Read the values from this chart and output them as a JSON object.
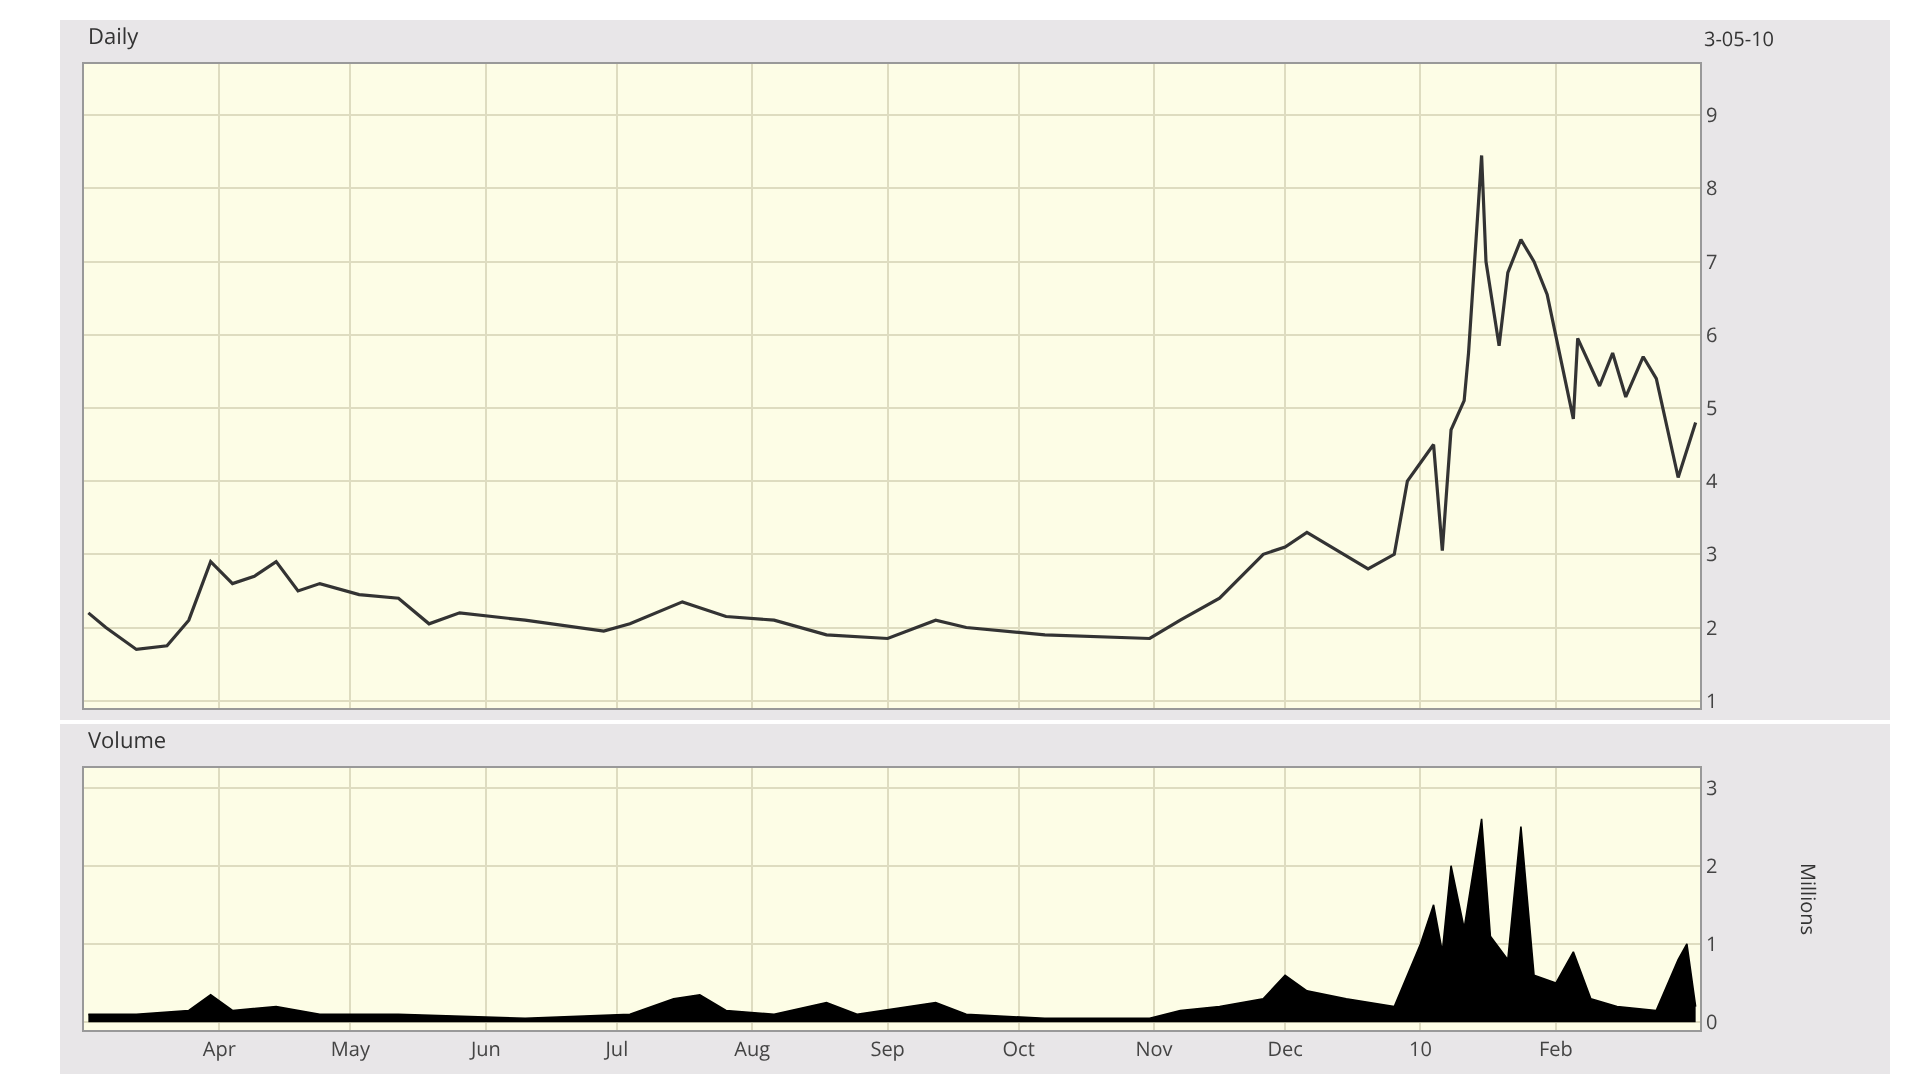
{
  "chart_data": [
    {
      "type": "line",
      "title": "Daily",
      "subtitle": "3-05-10",
      "x": [
        "2009-03-02",
        "2009-03-06",
        "2009-03-13",
        "2009-03-20",
        "2009-03-25",
        "2009-03-30",
        "2009-04-04",
        "2009-04-09",
        "2009-04-14",
        "2009-04-19",
        "2009-04-24",
        "2009-05-03",
        "2009-05-12",
        "2009-05-19",
        "2009-05-26",
        "2009-06-10",
        "2009-06-28",
        "2009-07-04",
        "2009-07-16",
        "2009-07-26",
        "2009-08-06",
        "2009-08-18",
        "2009-09-01",
        "2009-09-12",
        "2009-09-19",
        "2009-10-07",
        "2009-10-31",
        "2009-11-07",
        "2009-11-16",
        "2009-11-26",
        "2009-12-01",
        "2009-12-06",
        "2009-12-20",
        "2009-12-26",
        "2009-12-29",
        "2010-01-04",
        "2010-01-06",
        "2010-01-08",
        "2010-01-11",
        "2010-01-12",
        "2010-01-15",
        "2010-01-16",
        "2010-01-19",
        "2010-01-21",
        "2010-01-24",
        "2010-01-27",
        "2010-01-30",
        "2010-02-05",
        "2010-02-06",
        "2010-02-11",
        "2010-02-14",
        "2010-02-17",
        "2010-02-21",
        "2010-02-24",
        "2010-03-01",
        "2010-03-05"
      ],
      "series": [
        {
          "color": "#333333",
          "values": [
            2.2,
            2.0,
            1.7,
            1.75,
            2.1,
            2.9,
            2.6,
            2.7,
            2.9,
            2.5,
            2.6,
            2.45,
            2.4,
            2.05,
            2.2,
            2.1,
            1.95,
            2.05,
            2.35,
            2.15,
            2.1,
            1.9,
            1.85,
            2.1,
            2.0,
            1.9,
            1.85,
            2.1,
            2.4,
            3.0,
            3.1,
            3.3,
            2.8,
            3.0,
            4.0,
            4.5,
            3.05,
            4.7,
            5.1,
            5.75,
            8.45,
            7.0,
            5.85,
            6.85,
            7.3,
            7.0,
            6.55,
            4.85,
            5.95,
            5.3,
            5.75,
            5.15,
            5.7,
            5.4,
            4.05,
            4.8
          ]
        }
      ],
      "xlim": [
        "2009-03-01",
        "2010-03-06"
      ],
      "xticks": [
        {
          "value": "2009-04-01",
          "label": null
        },
        {
          "value": "2009-05-01",
          "label": null
        },
        {
          "value": "2009-06-01",
          "label": null
        },
        {
          "value": "2009-07-01",
          "label": null
        },
        {
          "value": "2009-08-01",
          "label": null
        },
        {
          "value": "2009-09-01",
          "label": null
        },
        {
          "value": "2009-10-01",
          "label": null
        },
        {
          "value": "2009-11-01",
          "label": null
        },
        {
          "value": "2009-12-01",
          "label": null
        },
        {
          "value": "2010-01-01",
          "label": null
        },
        {
          "value": "2010-02-01",
          "label": null
        }
      ],
      "ylim": [
        0.9,
        9.7
      ],
      "yticks": [
        1,
        2,
        3,
        4,
        5,
        6,
        7,
        8,
        9
      ],
      "tick_labels": "y",
      "grid": true
    },
    {
      "type": "area",
      "title": "Volume",
      "ylabel": "Millions",
      "x": [
        "2009-03-02",
        "2009-03-13",
        "2009-03-25",
        "2009-03-30",
        "2009-04-04",
        "2009-04-14",
        "2009-04-24",
        "2009-05-12",
        "2009-06-10",
        "2009-07-04",
        "2009-07-14",
        "2009-07-20",
        "2009-07-26",
        "2009-08-06",
        "2009-08-18",
        "2009-08-25",
        "2009-09-12",
        "2009-09-19",
        "2009-10-07",
        "2009-10-31",
        "2009-11-07",
        "2009-11-16",
        "2009-11-26",
        "2009-12-01",
        "2009-12-06",
        "2009-12-15",
        "2009-12-26",
        "2010-01-01",
        "2010-01-04",
        "2010-01-06",
        "2010-01-08",
        "2010-01-11",
        "2010-01-15",
        "2010-01-17",
        "2010-01-21",
        "2010-01-24",
        "2010-01-27",
        "2010-02-01",
        "2010-02-05",
        "2010-02-09",
        "2010-02-15",
        "2010-02-24",
        "2010-03-01",
        "2010-03-03",
        "2010-03-05"
      ],
      "series": [
        {
          "color": "#000000",
          "values": [
            0.1,
            0.1,
            0.15,
            0.35,
            0.15,
            0.2,
            0.1,
            0.1,
            0.05,
            0.1,
            0.3,
            0.35,
            0.15,
            0.1,
            0.25,
            0.1,
            0.25,
            0.1,
            0.05,
            0.05,
            0.15,
            0.2,
            0.3,
            0.6,
            0.4,
            0.3,
            0.2,
            1.0,
            1.5,
            0.9,
            2.0,
            1.2,
            2.6,
            1.1,
            0.8,
            2.5,
            0.6,
            0.5,
            0.9,
            0.3,
            0.2,
            0.15,
            0.8,
            1.0,
            0.2
          ]
        }
      ],
      "xlim": [
        "2009-03-01",
        "2010-03-06"
      ],
      "xticks": [
        {
          "value": "2009-04-01",
          "label": "Apr"
        },
        {
          "value": "2009-05-01",
          "label": "May"
        },
        {
          "value": "2009-06-01",
          "label": "Jun"
        },
        {
          "value": "2009-07-01",
          "label": "Jul"
        },
        {
          "value": "2009-08-01",
          "label": "Aug"
        },
        {
          "value": "2009-09-01",
          "label": "Sep"
        },
        {
          "value": "2009-10-01",
          "label": "Oct"
        },
        {
          "value": "2009-11-01",
          "label": "Nov"
        },
        {
          "value": "2009-12-01",
          "label": "Dec"
        },
        {
          "value": "2010-01-01",
          "label": "10"
        },
        {
          "value": "2010-02-01",
          "label": "Feb"
        }
      ],
      "ylim": [
        -0.1,
        3.25
      ],
      "yticks": [
        0,
        1,
        2,
        3
      ],
      "grid": true
    }
  ]
}
